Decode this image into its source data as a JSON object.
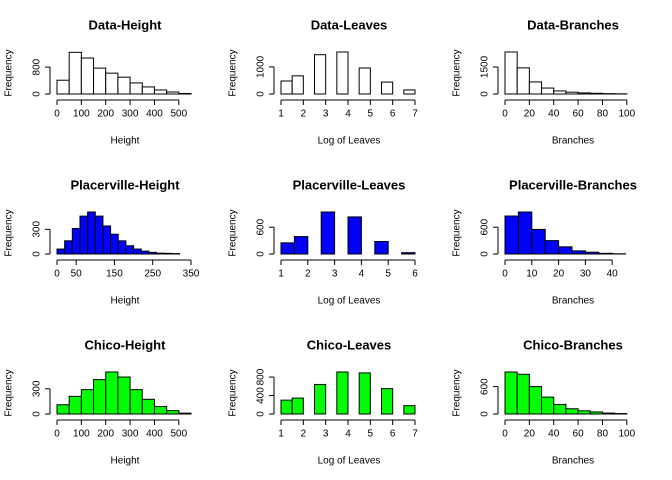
{
  "chart_data": [
    {
      "type": "histogram",
      "title": "Data-Height",
      "xlabel": "Height",
      "ylabel": "Frequency",
      "color": "#ffffff",
      "bins": [
        0,
        50,
        100,
        150,
        200,
        250,
        300,
        350,
        400,
        450,
        500,
        550
      ],
      "values": [
        410,
        1240,
        1070,
        770,
        620,
        500,
        330,
        210,
        120,
        60,
        15
      ],
      "xlim": [
        0,
        550
      ],
      "xticks": [
        0,
        100,
        200,
        300,
        400,
        500
      ],
      "ylim": [
        0,
        1250
      ],
      "yticks": [
        0,
        800
      ]
    },
    {
      "type": "histogram",
      "title": "Data-Leaves",
      "xlabel": "Log of Leaves",
      "ylabel": "Frequency",
      "color": "#ffffff",
      "bins": [
        1,
        1.5,
        2,
        2.5,
        3,
        3.5,
        4,
        4.5,
        5,
        5.5,
        6,
        6.5,
        7
      ],
      "values": [
        480,
        670,
        0,
        1450,
        0,
        1550,
        0,
        960,
        0,
        440,
        0,
        150
      ],
      "xlim": [
        1,
        7
      ],
      "xticks": [
        1,
        2,
        3,
        4,
        5,
        6,
        7
      ],
      "ylim": [
        0,
        1550
      ],
      "yticks": [
        0,
        1000
      ]
    },
    {
      "type": "histogram",
      "title": "Data-Branches",
      "xlabel": "Branches",
      "ylabel": "Frequency",
      "color": "#ffffff",
      "bins": [
        0,
        10,
        20,
        30,
        40,
        50,
        60,
        70,
        80,
        90,
        100
      ],
      "values": [
        2330,
        1450,
        670,
        330,
        170,
        100,
        60,
        40,
        20,
        10
      ],
      "xlim": [
        0,
        110
      ],
      "xticks": [
        0,
        20,
        40,
        60,
        80,
        100
      ],
      "ylim": [
        0,
        2330
      ],
      "yticks": [
        0,
        1500
      ]
    },
    {
      "type": "histogram",
      "title": "Placerville-Height",
      "xlabel": "Height",
      "ylabel": "Frequency",
      "color": "#0000ff",
      "bins": [
        0,
        20,
        40,
        60,
        80,
        100,
        120,
        140,
        160,
        180,
        200,
        220,
        240,
        260,
        280,
        300,
        320
      ],
      "values": [
        60,
        160,
        310,
        460,
        510,
        460,
        340,
        240,
        160,
        100,
        60,
        35,
        20,
        10,
        8,
        5
      ],
      "xlim": [
        0,
        350
      ],
      "xticks": [
        0,
        50,
        150,
        250,
        350
      ],
      "ylim": [
        0,
        510
      ],
      "yticks": [
        0,
        300
      ]
    },
    {
      "type": "histogram",
      "title": "Placerville-Leaves",
      "xlabel": "Log of Leaves",
      "ylabel": "Frequency",
      "color": "#0000ff",
      "bins": [
        1,
        1.5,
        2,
        2.5,
        3,
        3.5,
        4,
        4.5,
        5,
        5.5,
        6
      ],
      "values": [
        250,
        390,
        0,
        940,
        0,
        830,
        0,
        280,
        0,
        30
      ],
      "xlim": [
        1,
        6
      ],
      "xticks": [
        1,
        2,
        3,
        4,
        5,
        6
      ],
      "ylim": [
        0,
        940
      ],
      "yticks": [
        0,
        600
      ]
    },
    {
      "type": "histogram",
      "title": "Placerville-Branches",
      "xlabel": "Branches",
      "ylabel": "Frequency",
      "color": "#0000ff",
      "bins": [
        0,
        5,
        10,
        15,
        20,
        25,
        30,
        35,
        40,
        45
      ],
      "values": [
        850,
        940,
        550,
        300,
        160,
        70,
        40,
        15,
        5
      ],
      "xlim": [
        0,
        50
      ],
      "xticks": [
        0,
        10,
        20,
        30,
        40
      ],
      "ylim": [
        0,
        940
      ],
      "yticks": [
        0,
        600
      ]
    },
    {
      "type": "histogram",
      "title": "Chico-Height",
      "xlabel": "Height",
      "ylabel": "Frequency",
      "color": "#00ff00",
      "bins": [
        0,
        50,
        100,
        150,
        200,
        250,
        300,
        350,
        400,
        450,
        500,
        550
      ],
      "values": [
        110,
        210,
        290,
        410,
        500,
        440,
        290,
        175,
        90,
        40,
        10
      ],
      "xlim": [
        0,
        550
      ],
      "xticks": [
        0,
        100,
        200,
        300,
        400,
        500
      ],
      "ylim": [
        0,
        500
      ],
      "yticks": [
        0,
        300
      ]
    },
    {
      "type": "histogram",
      "title": "Chico-Leaves",
      "xlabel": "Log of Leaves",
      "ylabel": "Frequency",
      "color": "#00ff00",
      "bins": [
        1,
        1.5,
        2,
        2.5,
        3,
        3.5,
        4,
        4.5,
        5,
        5.5,
        6,
        6.5,
        7
      ],
      "values": [
        300,
        345,
        0,
        640,
        0,
        910,
        0,
        890,
        0,
        550,
        0,
        180
      ],
      "xlim": [
        1,
        7
      ],
      "xticks": [
        1,
        2,
        3,
        4,
        5,
        6,
        7
      ],
      "ylim": [
        0,
        910
      ],
      "yticks": [
        0,
        400,
        800
      ]
    },
    {
      "type": "histogram",
      "title": "Chico-Branches",
      "xlabel": "Branches",
      "ylabel": "Frequency",
      "color": "#00ff00",
      "bins": [
        0,
        10,
        20,
        30,
        40,
        50,
        60,
        70,
        80,
        90,
        100
      ],
      "values": [
        920,
        870,
        600,
        370,
        210,
        115,
        70,
        45,
        20,
        10
      ],
      "xlim": [
        0,
        110
      ],
      "xticks": [
        0,
        20,
        40,
        60,
        80,
        100
      ],
      "ylim": [
        0,
        920
      ],
      "yticks": [
        0,
        600
      ]
    }
  ]
}
